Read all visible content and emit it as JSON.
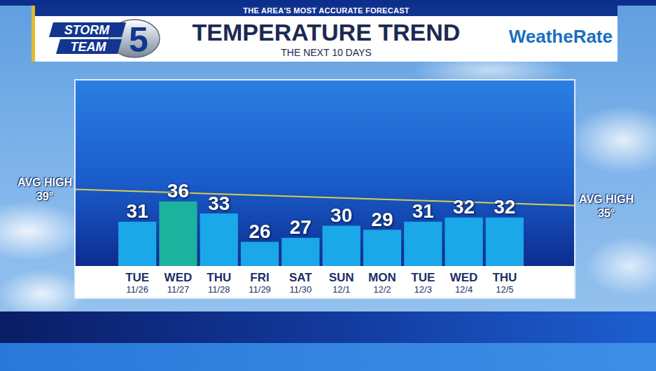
{
  "chart_data": {
    "type": "bar",
    "banner": "THE AREA'S MOST ACCURATE FORECAST",
    "title": "TEMPERATURE TREND",
    "subtitle": "THE NEXT 10 DAYS",
    "logo": {
      "top": "STORM",
      "number": "5",
      "bottom": "TEAM"
    },
    "brand": "WeatheRate",
    "categories": [
      "TUE 11/26",
      "WED 11/27",
      "THU 11/28",
      "FRI 11/29",
      "SAT 11/30",
      "SUN 12/1",
      "MON 12/2",
      "TUE 12/3",
      "WED 12/4",
      "THU 12/5"
    ],
    "values": [
      31,
      36,
      33,
      26,
      27,
      30,
      29,
      31,
      32,
      32
    ],
    "colors": [
      "#1aa8e8",
      "#1bb39d",
      "#1aa8e8",
      "#1aa8e8",
      "#1aa8e8",
      "#1aa8e8",
      "#1aa8e8",
      "#1aa8e8",
      "#1aa8e8",
      "#1aa8e8"
    ],
    "ylim": [
      20,
      66
    ],
    "tick_labels": "x",
    "grid": false,
    "data_labels": true,
    "annotations": [
      {
        "label": "AVG HIGH",
        "value": 39,
        "value_label": "39°"
      },
      {
        "label": "AVG HIGH",
        "value": 35,
        "value_label": "35°"
      }
    ],
    "annotation_color": "#dccb4a"
  }
}
